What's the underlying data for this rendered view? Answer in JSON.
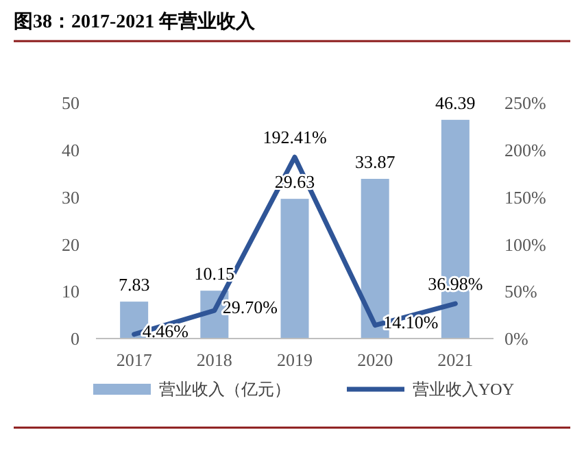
{
  "chart_data": {
    "type": "bar",
    "title": "图38：2017-2021 年营业收入",
    "categories": [
      "2017",
      "2018",
      "2019",
      "2020",
      "2021"
    ],
    "series": [
      {
        "name": "营业收入（亿元）",
        "color": "#95b3d7",
        "values": [
          7.83,
          10.15,
          29.63,
          33.87,
          46.39
        ],
        "value_labels": [
          "7.83",
          "10.15",
          "29.63",
          "33.87",
          "46.39"
        ]
      },
      {
        "name": "营业收入YOY",
        "type": "line",
        "axis": "y2",
        "color": "#2f5597",
        "values": [
          4.46,
          29.7,
          192.41,
          14.1,
          36.98
        ],
        "value_labels": [
          "4.46%",
          "29.70%",
          "192.41%",
          "14.10%",
          "36.98%"
        ]
      }
    ],
    "ylim": [
      0,
      50
    ],
    "yticks": [
      0,
      10,
      20,
      30,
      40,
      50
    ],
    "y2lim": [
      0,
      250
    ],
    "y2ticks": [
      {
        "value": 0,
        "label": "0%"
      },
      {
        "value": 50,
        "label": "50%"
      },
      {
        "value": 100,
        "label": "100%"
      },
      {
        "value": 150,
        "label": "150%"
      },
      {
        "value": 200,
        "label": "200%"
      },
      {
        "value": 250,
        "label": "250%"
      }
    ],
    "grid": false,
    "legend": "bottom",
    "marker": "none",
    "line_style": "solid"
  }
}
